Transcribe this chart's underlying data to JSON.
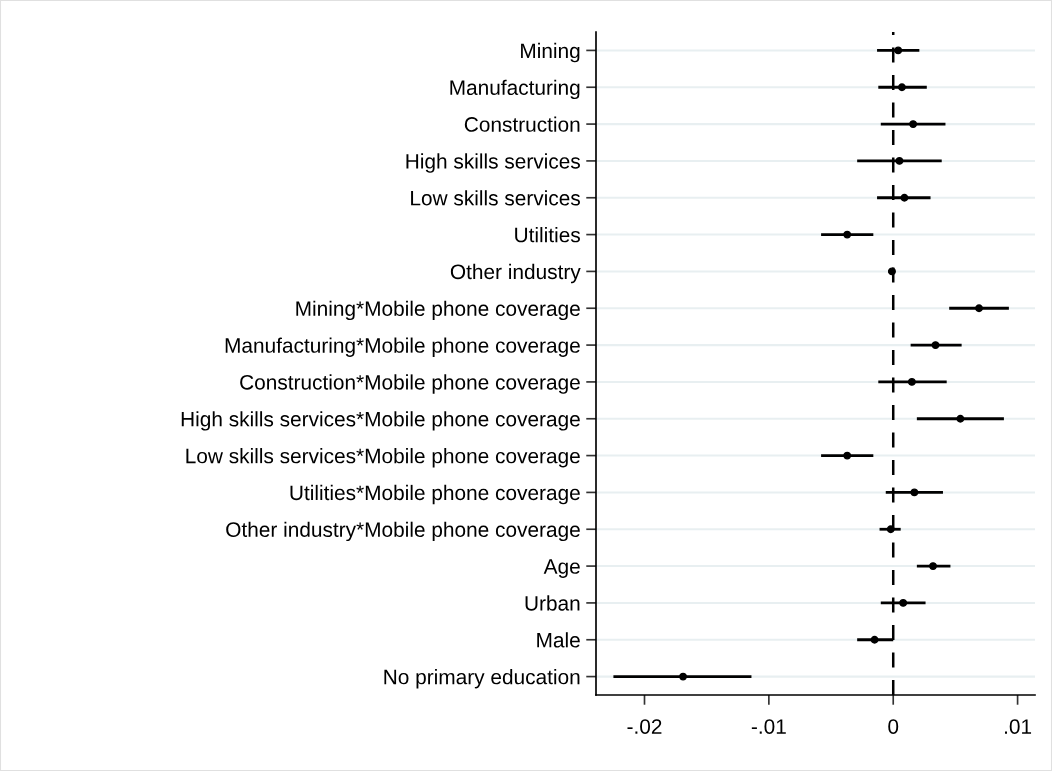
{
  "chart_data": {
    "type": "scatter",
    "orientation": "horizontal",
    "categories": [
      "Mining",
      "Manufacturing",
      "Construction",
      "High skills services",
      "Low skills services",
      "Utilities",
      "Other industry",
      "Mining*Mobile phone coverage",
      "Manufacturing*Mobile phone coverage",
      "Construction*Mobile phone coverage",
      "High skills services*Mobile phone coverage",
      "Low skills services*Mobile phone coverage",
      "Utilities*Mobile phone coverage",
      "Other industry*Mobile phone coverage",
      "Age",
      "Urban",
      "Male",
      "No primary education"
    ],
    "values": [
      0.0004,
      0.0007,
      0.0016,
      0.0005,
      0.0009,
      -0.0037,
      -0.0001,
      0.0069,
      0.0034,
      0.0015,
      0.0054,
      -0.0037,
      0.0017,
      -0.0002,
      0.0032,
      0.0008,
      -0.0015,
      -0.0169
    ],
    "errors": [
      [
        -0.0013,
        0.0021
      ],
      [
        -0.0012,
        0.0027
      ],
      [
        -0.001,
        0.0042
      ],
      [
        -0.0029,
        0.0039
      ],
      [
        -0.0013,
        0.003
      ],
      [
        -0.0058,
        -0.0016
      ],
      [
        -0.0004,
        0.0001
      ],
      [
        0.0045,
        0.0093
      ],
      [
        0.0014,
        0.0055
      ],
      [
        -0.0012,
        0.0043
      ],
      [
        0.0019,
        0.0089
      ],
      [
        -0.0058,
        -0.0016
      ],
      [
        -0.0006,
        0.004
      ],
      [
        -0.0011,
        0.0006
      ],
      [
        0.0019,
        0.0046
      ],
      [
        -0.001,
        0.0026
      ],
      [
        -0.0029,
        0.0
      ],
      [
        -0.0225,
        -0.0114
      ]
    ],
    "color": "#000000",
    "marker": "circle",
    "xlim": [
      -0.0239,
      0.0114
    ],
    "xticks": [
      {
        "value": -0.02,
        "label": "-.02"
      },
      {
        "value": -0.01,
        "label": "-.01"
      },
      0,
      {
        "value": 0.01,
        "label": ".01"
      }
    ],
    "ref_lines": [
      {
        "axis": "x",
        "value": 0,
        "color": "#000000",
        "line_style": "dashed"
      }
    ],
    "grid": "y"
  }
}
